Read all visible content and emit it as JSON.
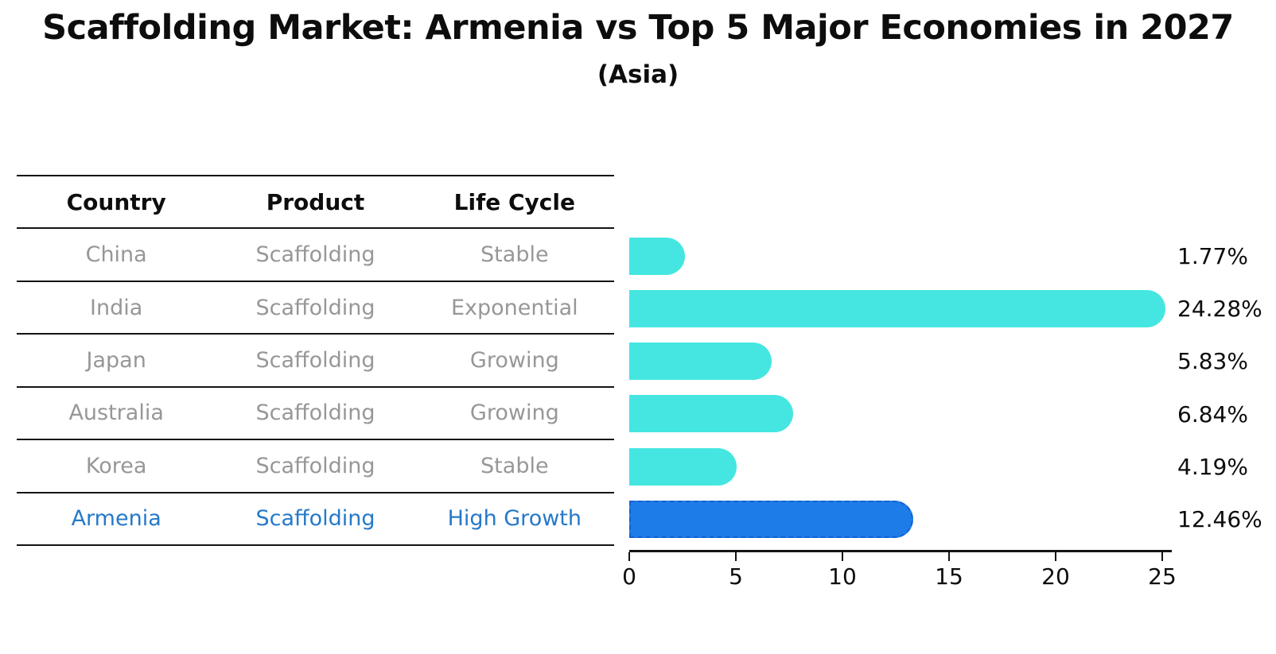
{
  "title": "Scaffolding Market: Armenia vs Top 5 Major Economies in 2027",
  "subtitle": "(Asia)",
  "table": {
    "headers": [
      "Country",
      "Product",
      "Life Cycle"
    ],
    "rows": [
      {
        "country": "China",
        "product": "Scaffolding",
        "life_cycle": "Stable",
        "highlight": false
      },
      {
        "country": "India",
        "product": "Scaffolding",
        "life_cycle": "Exponential",
        "highlight": false
      },
      {
        "country": "Japan",
        "product": "Scaffolding",
        "life_cycle": "Growing",
        "highlight": false
      },
      {
        "country": "Australia",
        "product": "Scaffolding",
        "life_cycle": "Growing",
        "highlight": false
      },
      {
        "country": "Korea",
        "product": "Scaffolding",
        "life_cycle": "Stable",
        "highlight": false
      },
      {
        "country": "Armenia",
        "product": "Scaffolding",
        "life_cycle": "High Growth",
        "highlight": true
      }
    ]
  },
  "chart_data": {
    "type": "bar",
    "orientation": "horizontal",
    "title": "Scaffolding Market: Armenia vs Top 5 Major Economies in 2027",
    "subtitle": "(Asia)",
    "categories": [
      "China",
      "India",
      "Japan",
      "Australia",
      "Korea",
      "Armenia"
    ],
    "values": [
      1.77,
      24.28,
      5.83,
      6.84,
      4.19,
      12.46
    ],
    "value_labels": [
      "1.77%",
      "24.28%",
      "5.83%",
      "6.84%",
      "4.19%",
      "12.46%"
    ],
    "xlabel": "",
    "ylabel": "",
    "xlim": [
      0,
      25
    ],
    "xticks": [
      0,
      5,
      10,
      15,
      20,
      25
    ],
    "grid": false,
    "legend": false,
    "bar_color": "#45e6e1",
    "highlight_index": 5,
    "highlight_bar_color": "#1e7ce8",
    "highlight_border_color": "#1261cf",
    "highlight_text_color": "#2579c9",
    "muted_text_color": "#979797",
    "text_color": "#0d0d0d"
  }
}
